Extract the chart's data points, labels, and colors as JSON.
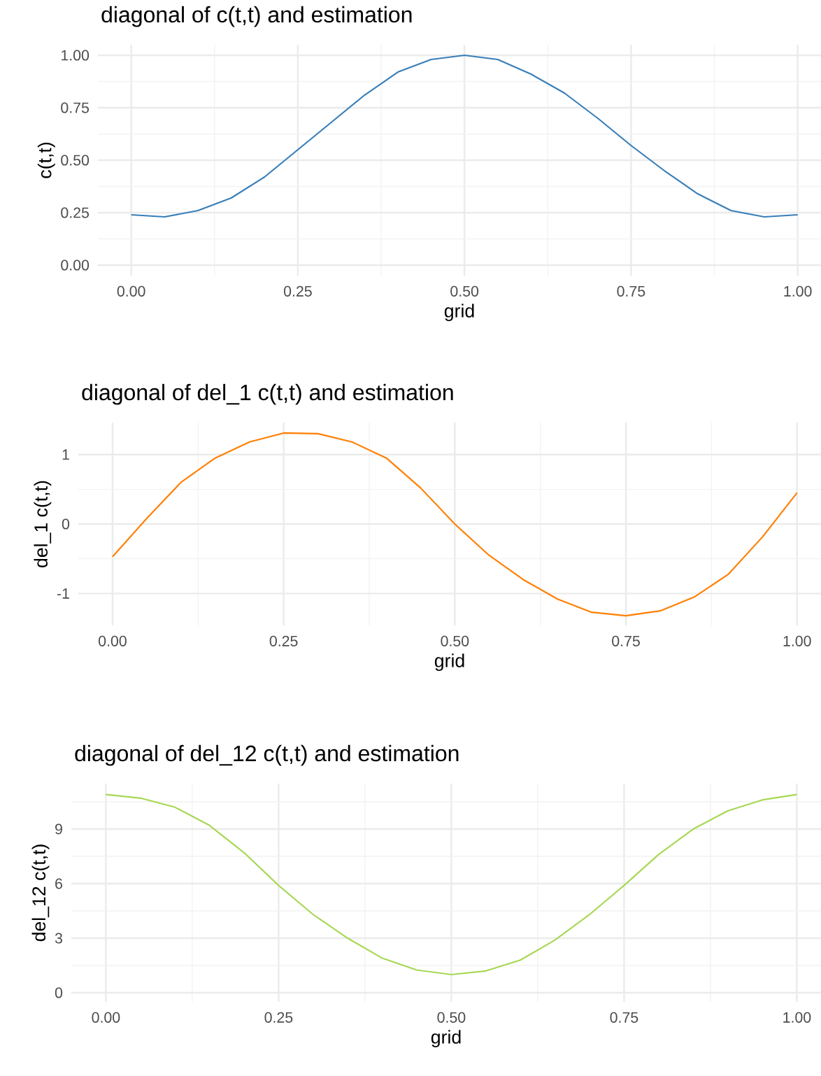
{
  "chart_data": [
    {
      "type": "line",
      "title": "diagonal of c(t,t) and estimation",
      "xlabel": "grid",
      "ylabel": "c(t,t)",
      "grid": true,
      "x": [
        0,
        0.05,
        0.1,
        0.15,
        0.2,
        0.25,
        0.3,
        0.35,
        0.4,
        0.45,
        0.5,
        0.55,
        0.6,
        0.65,
        0.7,
        0.75,
        0.8,
        0.85,
        0.9,
        0.95,
        1.0
      ],
      "series": [
        {
          "color": "#377eb8",
          "values": [
            0.24,
            0.23,
            0.26,
            0.32,
            0.42,
            0.55,
            0.68,
            0.81,
            0.92,
            0.98,
            1.0,
            0.98,
            0.91,
            0.82,
            0.7,
            0.57,
            0.45,
            0.34,
            0.26,
            0.23,
            0.24
          ]
        }
      ],
      "xlim": [
        -0.05,
        1.035
      ],
      "ylim": [
        -0.05,
        1.05
      ],
      "xticks": [
        {
          "value": 0,
          "label": "0.00"
        },
        {
          "value": 0.25,
          "label": "0.25"
        },
        {
          "value": 0.5,
          "label": "0.50"
        },
        {
          "value": 0.75,
          "label": "0.75"
        },
        {
          "value": 1,
          "label": "1.00"
        }
      ],
      "yticks": [
        {
          "value": 0,
          "label": "0.00"
        },
        {
          "value": 0.25,
          "label": "0.25"
        },
        {
          "value": 0.5,
          "label": "0.50"
        },
        {
          "value": 0.75,
          "label": "0.75"
        },
        {
          "value": 1,
          "label": "1.00"
        }
      ]
    },
    {
      "type": "line",
      "title": "diagonal of del_1 c(t,t) and estimation",
      "xlabel": "grid",
      "ylabel": "del_1 c(t,t)",
      "grid": true,
      "x": [
        0,
        0.05,
        0.1,
        0.15,
        0.2,
        0.25,
        0.3,
        0.35,
        0.4,
        0.45,
        0.5,
        0.55,
        0.6,
        0.65,
        0.7,
        0.75,
        0.8,
        0.85,
        0.9,
        0.95,
        1.0
      ],
      "series": [
        {
          "color": "#ff7f00",
          "values": [
            -0.47,
            0.08,
            0.6,
            0.95,
            1.18,
            1.31,
            1.3,
            1.18,
            0.95,
            0.52,
            0.0,
            -0.45,
            -0.8,
            -1.08,
            -1.27,
            -1.32,
            -1.25,
            -1.05,
            -0.72,
            -0.18,
            0.45
          ]
        }
      ],
      "xlim": [
        -0.05,
        1.035
      ],
      "ylim": [
        -1.46,
        1.46
      ],
      "xticks": [
        {
          "value": 0,
          "label": "0.00"
        },
        {
          "value": 0.25,
          "label": "0.25"
        },
        {
          "value": 0.5,
          "label": "0.50"
        },
        {
          "value": 0.75,
          "label": "0.75"
        },
        {
          "value": 1,
          "label": "1.00"
        }
      ],
      "yticks": [
        -1,
        0,
        1
      ]
    },
    {
      "type": "line",
      "title": "diagonal of del_12 c(t,t) and estimation",
      "xlabel": "grid",
      "ylabel": "del_12 c(t,t)",
      "grid": true,
      "x": [
        0,
        0.05,
        0.1,
        0.15,
        0.2,
        0.25,
        0.3,
        0.35,
        0.4,
        0.45,
        0.5,
        0.55,
        0.6,
        0.65,
        0.7,
        0.75,
        0.8,
        0.85,
        0.9,
        0.95,
        1.0
      ],
      "series": [
        {
          "color": "#a6d854",
          "values": [
            10.9,
            10.7,
            10.2,
            9.2,
            7.7,
            5.9,
            4.3,
            3.0,
            1.9,
            1.25,
            1.0,
            1.2,
            1.8,
            2.9,
            4.3,
            5.9,
            7.6,
            9.0,
            10.0,
            10.6,
            10.9
          ]
        }
      ],
      "xlim": [
        -0.05,
        1.035
      ],
      "ylim": [
        -0.5,
        11.5
      ],
      "xticks": [
        {
          "value": 0,
          "label": "0.00"
        },
        {
          "value": 0.25,
          "label": "0.25"
        },
        {
          "value": 0.5,
          "label": "0.50"
        },
        {
          "value": 0.75,
          "label": "0.75"
        },
        {
          "value": 1,
          "label": "1.00"
        }
      ],
      "yticks": [
        0,
        3,
        6,
        9
      ]
    }
  ]
}
